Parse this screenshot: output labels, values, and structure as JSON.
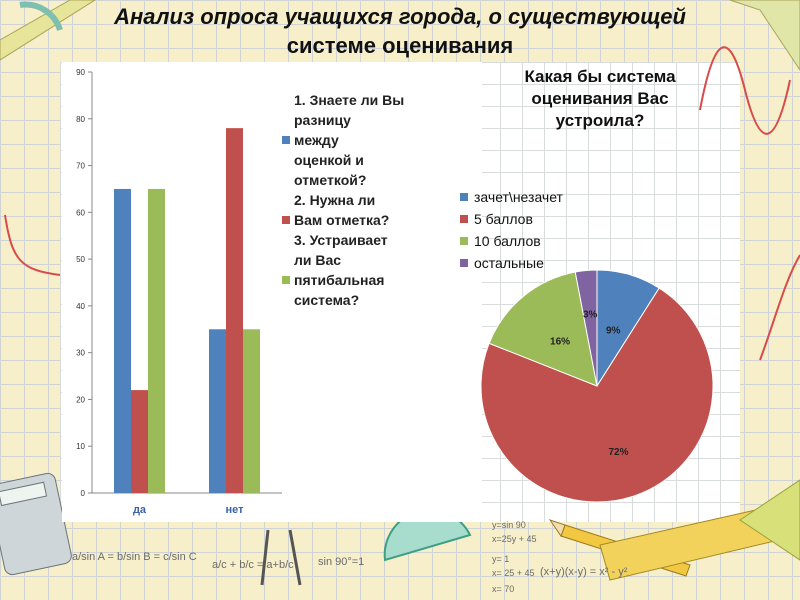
{
  "slide": {
    "title_line1": "Анализ опроса учащихся города, о существующей",
    "title_line2": "системе оценивания"
  },
  "colors": {
    "blue": "#4f81bd",
    "red": "#c0504d",
    "green": "#9bbb59",
    "purple": "#8064a2"
  },
  "chart_data": [
    {
      "type": "bar",
      "categories": [
        "да",
        "нет"
      ],
      "series": [
        {
          "name": "1. Знаете ли Вы разницу между оценкой и отметкой?",
          "values": [
            65,
            35
          ]
        },
        {
          "name": "2. Нужна ли Вам отметка?",
          "values": [
            22,
            78
          ]
        },
        {
          "name": "3. Устраивает ли Вас пятибальная система?",
          "values": [
            65,
            35
          ]
        }
      ],
      "yticks": [
        "0",
        "10",
        "20",
        "30",
        "40",
        "50",
        "60",
        "70",
        "80",
        "90"
      ],
      "ylim": [
        0,
        90
      ],
      "legend_position": "right",
      "legend_lines": [
        [
          "1. Знаете ли Вы",
          "разницу",
          "между",
          "оценкой и",
          "отметкой?"
        ],
        [
          "2. Нужна ли",
          "Вам отметка?"
        ],
        [
          "3. Устраивает",
          "ли Вас",
          "пятибальная",
          "система?"
        ]
      ]
    },
    {
      "type": "pie",
      "title_lines": [
        "Какая бы система",
        "оценивания Вас",
        "устроила?"
      ],
      "categories": [
        "зачет\\незачет",
        "5 баллов",
        "10 баллов",
        "остальные"
      ],
      "values": [
        9,
        72,
        16,
        3
      ],
      "labels": [
        "9%",
        "72%",
        "16%",
        "3%"
      ],
      "legend_position": "left"
    }
  ],
  "decor": {
    "formula_law_of_sines": "a/sin A = b/sin B = c/sin C",
    "formula_fraction": "a/c + b/c = a+b/c",
    "formula_sin90": "sin 90°=1",
    "note_lines": [
      "y=sin 90",
      "x=25y + 45",
      "y= 1",
      "x= 25 + 45",
      "x= 70"
    ],
    "formula_right": "(x+y)(x-y) = x² - y²"
  }
}
